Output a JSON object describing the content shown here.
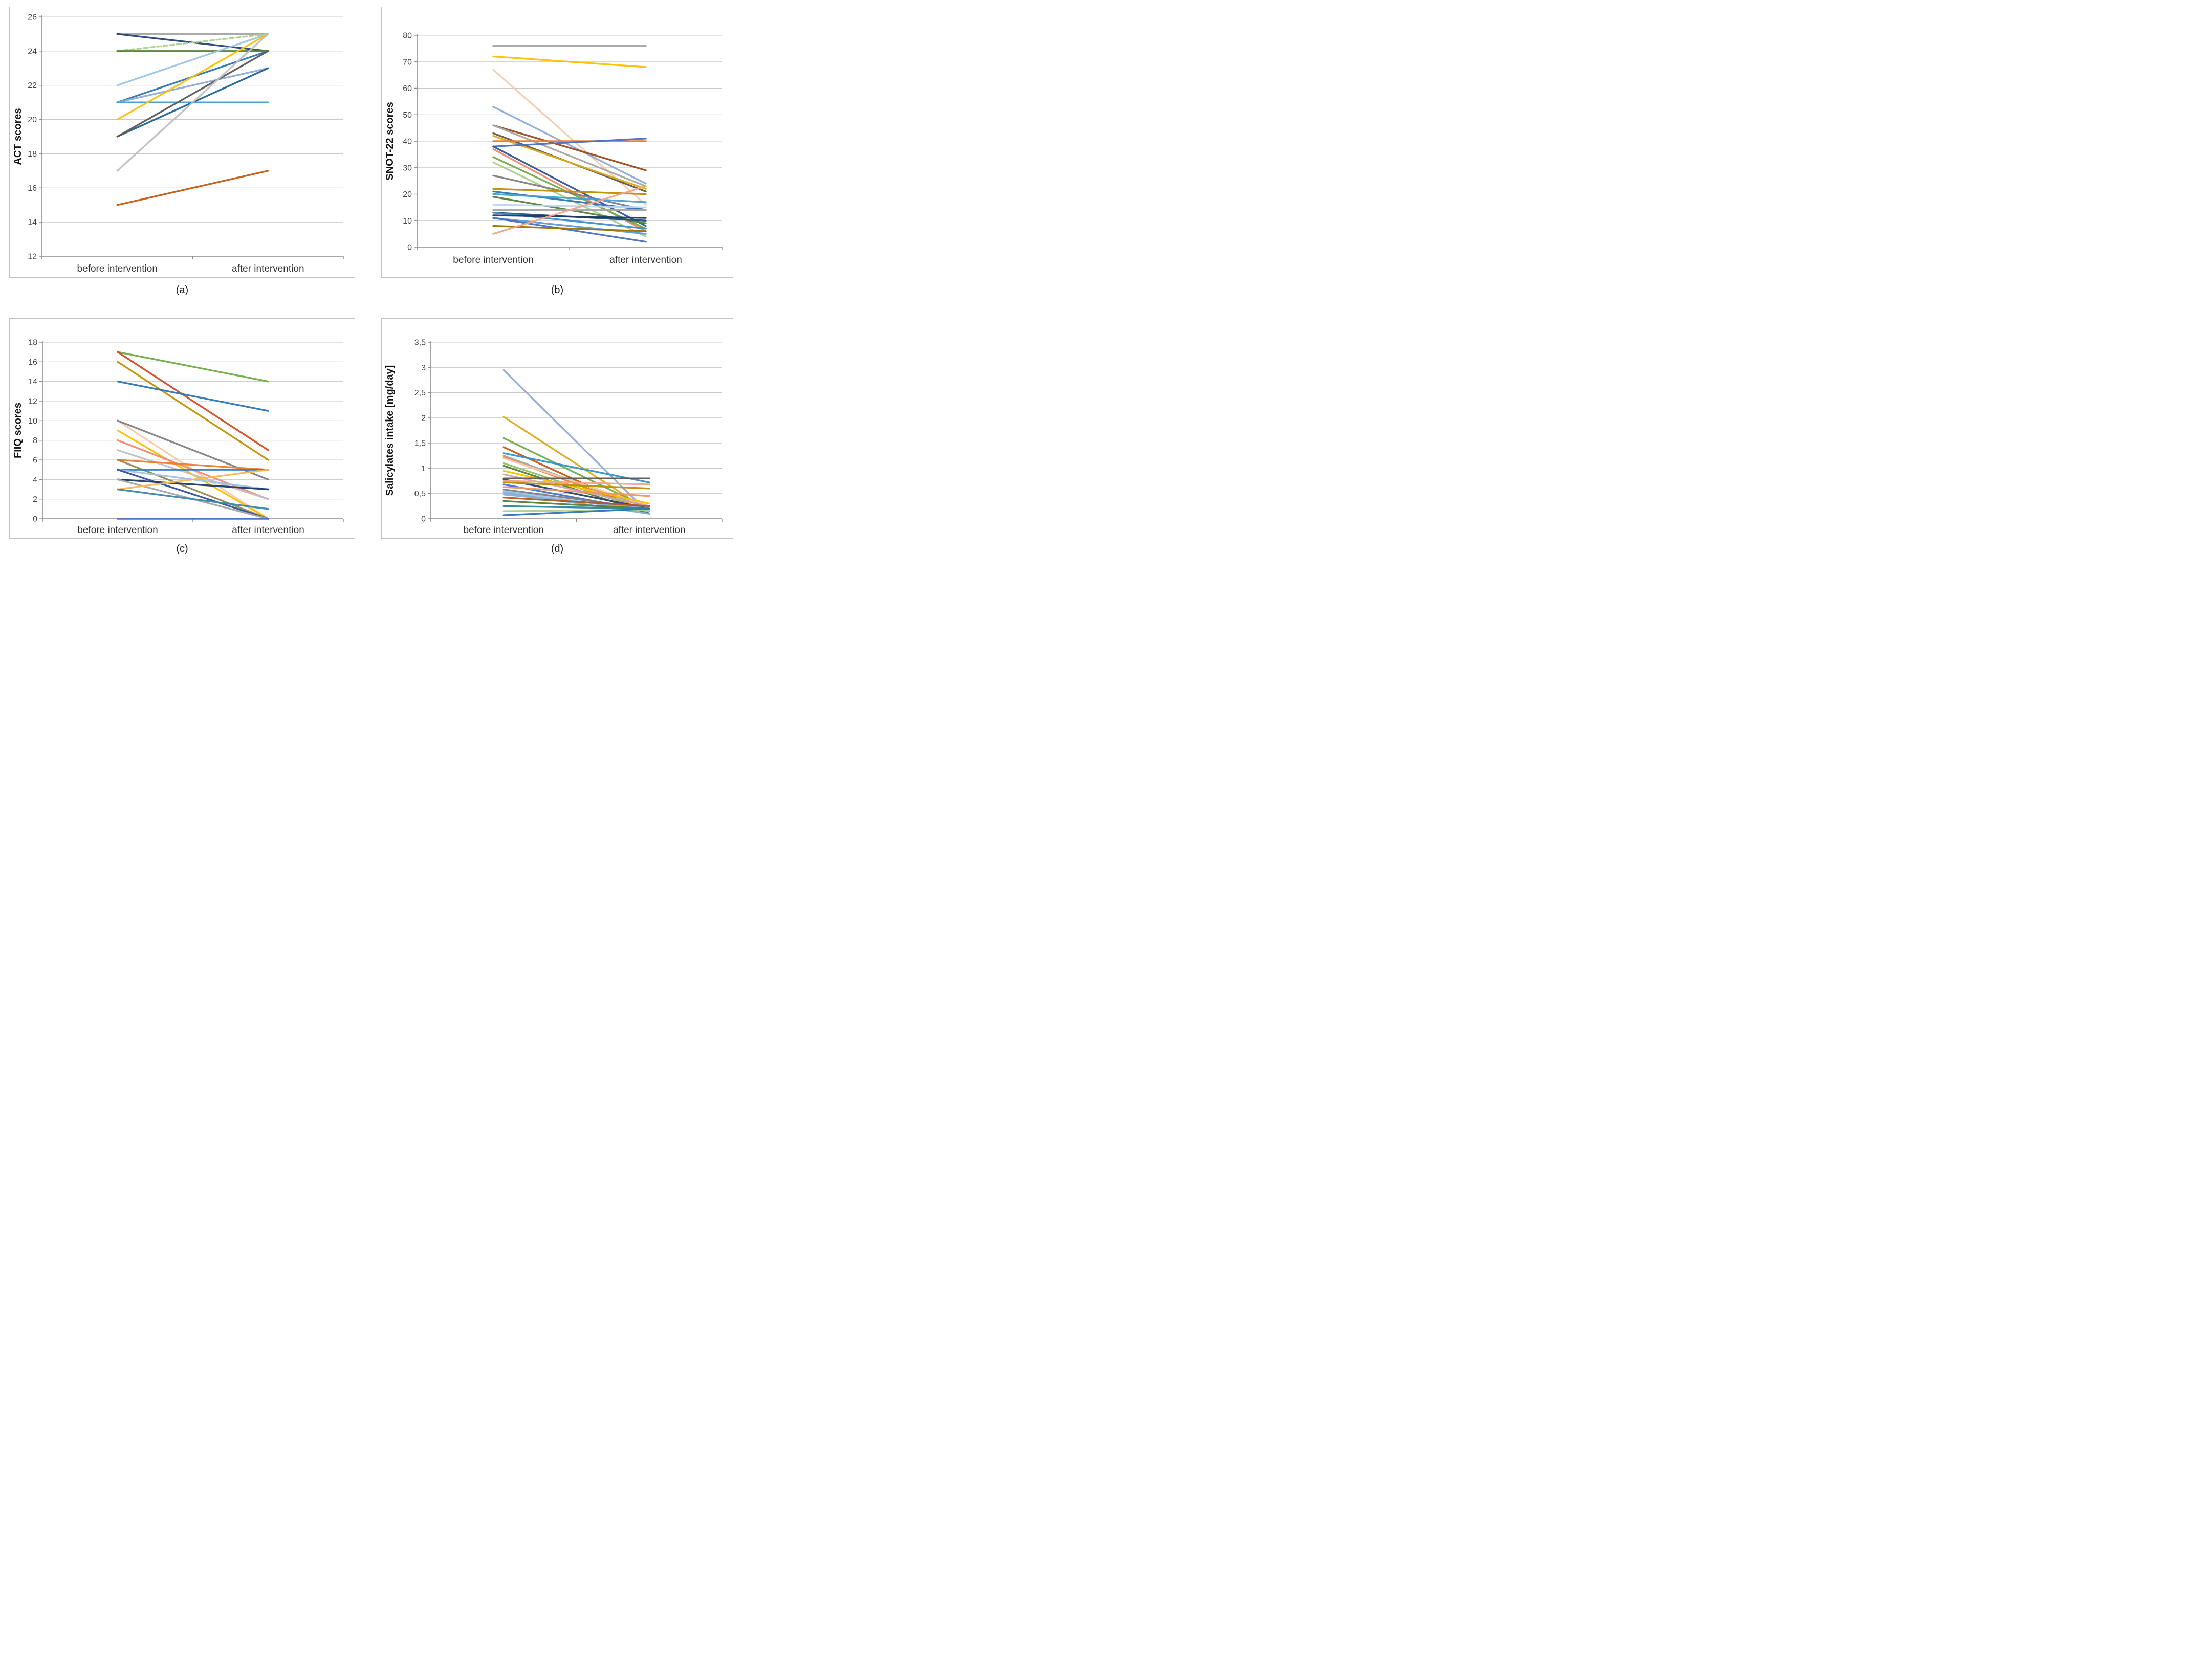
{
  "page": {
    "background": "#ffffff"
  },
  "chart_data": [
    {
      "panel": "a",
      "caption": "(a)",
      "type": "line",
      "subtype": "paired-slope",
      "title": "",
      "xlabel": "",
      "ylabel": "ACT scores",
      "categories": [
        "before intervention",
        "after intervention"
      ],
      "ylim": [
        12,
        26
      ],
      "ytick_values": [
        12,
        14,
        16,
        18,
        20,
        22,
        24,
        26
      ],
      "ytick_labels": [
        "12",
        "14",
        "16",
        "18",
        "20",
        "22",
        "24",
        "26"
      ],
      "grid": true,
      "legend": "none",
      "series_format": [
        "before",
        "after",
        "color",
        "dashed"
      ],
      "series": [
        [
          25,
          25,
          "#a6a6a6",
          false
        ],
        [
          25,
          24,
          "#264478",
          false
        ],
        [
          24,
          25,
          "#a9d18e",
          true
        ],
        [
          24,
          24,
          "#548235",
          false
        ],
        [
          22,
          25,
          "#9dc3e6",
          false
        ],
        [
          21,
          24,
          "#2e75b6",
          false
        ],
        [
          21,
          23,
          "#8faadc",
          false
        ],
        [
          21,
          21,
          "#41a1d0",
          false
        ],
        [
          20,
          25,
          "#ffc000",
          false
        ],
        [
          19,
          23,
          "#1f6391",
          false
        ],
        [
          19,
          24,
          "#595959",
          false
        ],
        [
          17,
          25,
          "#bfbfbf",
          false
        ],
        [
          15,
          17,
          "#c55a11",
          false
        ]
      ]
    },
    {
      "panel": "b",
      "caption": "(b)",
      "type": "line",
      "subtype": "paired-slope",
      "title": "",
      "xlabel": "",
      "ylabel": "SNOT-22 scores",
      "categories": [
        "before intervention",
        "after intervention"
      ],
      "ylim": [
        0,
        80
      ],
      "ytick_values": [
        0,
        10,
        20,
        30,
        40,
        50,
        60,
        70,
        80
      ],
      "ytick_labels": [
        "0",
        "10",
        "20",
        "30",
        "40",
        "50",
        "60",
        "70",
        "80"
      ],
      "grid": true,
      "legend": "none",
      "series_format": [
        "before",
        "after",
        "color",
        "dashed"
      ],
      "series": [
        [
          76,
          76,
          "#a5a5a5",
          false
        ],
        [
          72,
          68,
          "#ffc000",
          false
        ],
        [
          67,
          16,
          "#f8cbad",
          false
        ],
        [
          53,
          24,
          "#8faadc",
          false
        ],
        [
          46,
          29,
          "#9e4a1f",
          false
        ],
        [
          46,
          23,
          "#a5a5a5",
          false
        ],
        [
          43,
          21,
          "#595959",
          false
        ],
        [
          42,
          22,
          "#dfaa13",
          false
        ],
        [
          40,
          40,
          "#ed7d31",
          false
        ],
        [
          38,
          41,
          "#4472c4",
          false
        ],
        [
          38,
          8,
          "#2f5597",
          false
        ],
        [
          37,
          6,
          "#f4876f",
          false
        ],
        [
          34,
          7,
          "#70ad47",
          false
        ],
        [
          32,
          4,
          "#a9d18e",
          false
        ],
        [
          27,
          14,
          "#7f7f7f",
          false
        ],
        [
          22,
          20,
          "#bf8f00",
          false
        ],
        [
          21,
          14,
          "#2e75b6",
          false
        ],
        [
          20,
          17,
          "#41a1d0",
          false
        ],
        [
          19,
          9,
          "#538135",
          false
        ],
        [
          16,
          15,
          "#bdd7ee",
          false
        ],
        [
          14,
          14,
          "#a6a6a6",
          false
        ],
        [
          13,
          10,
          "#1f4e79",
          false
        ],
        [
          13,
          7,
          "#3f8fc5",
          false
        ],
        [
          12,
          11,
          "#203864",
          false
        ],
        [
          11,
          5,
          "#5b9bd5",
          false
        ],
        [
          11,
          2,
          "#4472c4",
          false
        ],
        [
          8,
          6,
          "#997300",
          false
        ],
        [
          5,
          23,
          "#f4a58a",
          false
        ]
      ]
    },
    {
      "panel": "c",
      "caption": "(c)",
      "type": "line",
      "subtype": "paired-slope",
      "title": "",
      "xlabel": "",
      "ylabel": "FIIQ scores",
      "categories": [
        "before intervention",
        "after intervention"
      ],
      "ylim": [
        0,
        18
      ],
      "ytick_values": [
        0,
        2,
        4,
        6,
        8,
        10,
        12,
        14,
        16,
        18
      ],
      "ytick_labels": [
        "0",
        "2",
        "4",
        "6",
        "8",
        "10",
        "12",
        "14",
        "16",
        "18"
      ],
      "grid": true,
      "legend": "none",
      "series_format": [
        "before",
        "after",
        "color",
        "dashed"
      ],
      "series": [
        [
          17,
          14,
          "#70ad47",
          false
        ],
        [
          17,
          7,
          "#d04a22",
          false
        ],
        [
          16,
          6,
          "#bf9000",
          false
        ],
        [
          14,
          11,
          "#2e75b6",
          false
        ],
        [
          10,
          0,
          "#f8cbad",
          false
        ],
        [
          10,
          4,
          "#808080",
          false
        ],
        [
          9,
          0,
          "#ffc000",
          false
        ],
        [
          8,
          2,
          "#f4876f",
          false
        ],
        [
          7,
          2,
          "#bfbfbf",
          false
        ],
        [
          6,
          5,
          "#ed7d31",
          false
        ],
        [
          6,
          0,
          "#948a54",
          false
        ],
        [
          5,
          5,
          "#3a7ebf",
          false
        ],
        [
          5,
          3,
          "#9dc3e6",
          false
        ],
        [
          5,
          0,
          "#2f5597",
          false
        ],
        [
          4,
          3,
          "#203864",
          false
        ],
        [
          4,
          0,
          "#a6a6a6",
          false
        ],
        [
          3,
          5,
          "#ffb84d",
          false
        ],
        [
          3,
          1,
          "#3a87ad",
          false
        ],
        [
          0,
          0,
          "#4472c4",
          false
        ]
      ]
    },
    {
      "panel": "d",
      "caption": "(d)",
      "type": "line",
      "subtype": "paired-slope",
      "title": "",
      "xlabel": "",
      "ylabel": "Salicylates intake [mg/day]",
      "categories": [
        "before intervention",
        "after intervention"
      ],
      "ylim": [
        0,
        3.5
      ],
      "ytick_values": [
        0,
        0.5,
        1,
        1.5,
        2,
        2.5,
        3,
        3.5
      ],
      "ytick_labels": [
        "0",
        "0,5",
        "1",
        "1,5",
        "2",
        "2,5",
        "3",
        "3,5"
      ],
      "grid": true,
      "legend": "none",
      "series_format": [
        "before",
        "after",
        "color",
        "dashed"
      ],
      "series": [
        [
          2.95,
          0.1,
          "#8faadc",
          false
        ],
        [
          2.02,
          0.15,
          "#dfaa13",
          false
        ],
        [
          1.6,
          0.2,
          "#70ad47",
          false
        ],
        [
          1.42,
          0.1,
          "#c55a11",
          false
        ],
        [
          1.3,
          0.72,
          "#2e96c8",
          false
        ],
        [
          1.25,
          0.2,
          "#a5a5a5",
          false
        ],
        [
          1.22,
          0.15,
          "#ed7d31",
          false
        ],
        [
          1.2,
          0.25,
          "#f8cbad",
          false
        ],
        [
          1.1,
          0.15,
          "#8cc168",
          false
        ],
        [
          1.05,
          0.1,
          "#548235",
          false
        ],
        [
          0.95,
          0.3,
          "#ffc000",
          false
        ],
        [
          0.88,
          0.25,
          "#cfa7a7",
          false
        ],
        [
          0.8,
          0.8,
          "#595959",
          false
        ],
        [
          0.78,
          0.2,
          "#264478",
          false
        ],
        [
          0.75,
          0.68,
          "#f4a58a",
          false
        ],
        [
          0.72,
          0.6,
          "#bf8f00",
          false
        ],
        [
          0.68,
          0.15,
          "#4472c4",
          false
        ],
        [
          0.63,
          0.45,
          "#f1975a",
          false
        ],
        [
          0.58,
          0.2,
          "#7f7f7f",
          false
        ],
        [
          0.55,
          0.15,
          "#9dc3e6",
          false
        ],
        [
          0.52,
          0.1,
          "#7cafdd",
          false
        ],
        [
          0.48,
          0.2,
          "#8faadc",
          false
        ],
        [
          0.42,
          0.25,
          "#ae5a21",
          false
        ],
        [
          0.35,
          0.2,
          "#538135",
          false
        ],
        [
          0.25,
          0.2,
          "#31859c",
          false
        ],
        [
          0.15,
          0.18,
          "#a9d18e",
          false
        ],
        [
          0.07,
          0.2,
          "#2e75b6",
          false
        ]
      ]
    }
  ]
}
